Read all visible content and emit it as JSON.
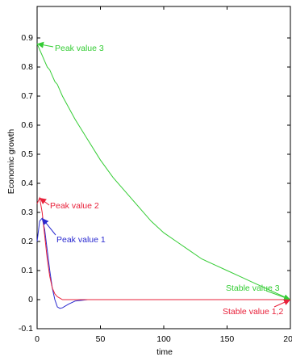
{
  "chart_data": {
    "type": "line",
    "xlabel": "time",
    "ylabel": "Economic growth",
    "x": [
      0,
      2,
      4,
      6,
      8,
      10,
      12,
      14,
      16,
      18,
      20,
      25,
      30,
      40,
      50,
      60,
      70,
      80,
      90,
      100,
      110,
      120,
      130,
      140,
      150,
      160,
      170,
      180,
      190,
      200
    ],
    "series": [
      {
        "color": "#2a2ad0",
        "values": [
          0.2,
          0.27,
          0.28,
          0.24,
          0.17,
          0.1,
          0.04,
          0,
          -0.025,
          -0.03,
          -0.028,
          -0.015,
          -0.005,
          0,
          0,
          0,
          0,
          0,
          0,
          0,
          0,
          0,
          0,
          0,
          0,
          0,
          0,
          0,
          0,
          0
        ]
      },
      {
        "color": "#e8203a",
        "values": [
          0.33,
          0.35,
          0.3,
          0.22,
          0.14,
          0.08,
          0.04,
          0.02,
          0.01,
          0.005,
          0,
          0,
          0,
          0,
          0,
          0,
          0,
          0,
          0,
          0,
          0,
          0,
          0,
          0,
          0,
          0,
          0,
          0,
          0,
          0
        ]
      },
      {
        "color": "#33cc33",
        "values": [
          0.88,
          0.86,
          0.84,
          0.82,
          0.8,
          0.79,
          0.77,
          0.75,
          0.74,
          0.72,
          0.7,
          0.66,
          0.62,
          0.55,
          0.48,
          0.42,
          0.37,
          0.32,
          0.27,
          0.23,
          0.2,
          0.17,
          0.14,
          0.12,
          0.1,
          0.08,
          0.06,
          0.04,
          0.02,
          0
        ]
      }
    ],
    "annotations": [
      {
        "text": "Peak value 3",
        "color": "#33cc33"
      },
      {
        "text": "Peak value 2",
        "color": "#e8203a"
      },
      {
        "text": "Peak value 1",
        "color": "#2a2ad0"
      },
      {
        "text": "Stable value 3",
        "color": "#33cc33"
      },
      {
        "text": "Stable value 1,2",
        "color": "#e8203a"
      }
    ],
    "xlim": [
      0,
      200
    ],
    "xticks": [
      0,
      50,
      100,
      150,
      200
    ],
    "ylim": [
      -0.1,
      1
    ],
    "yticks": [
      -0.1,
      0,
      0.1,
      0.2,
      0.3,
      0.4,
      0.5,
      0.6,
      0.7,
      0.8,
      0.9
    ]
  }
}
